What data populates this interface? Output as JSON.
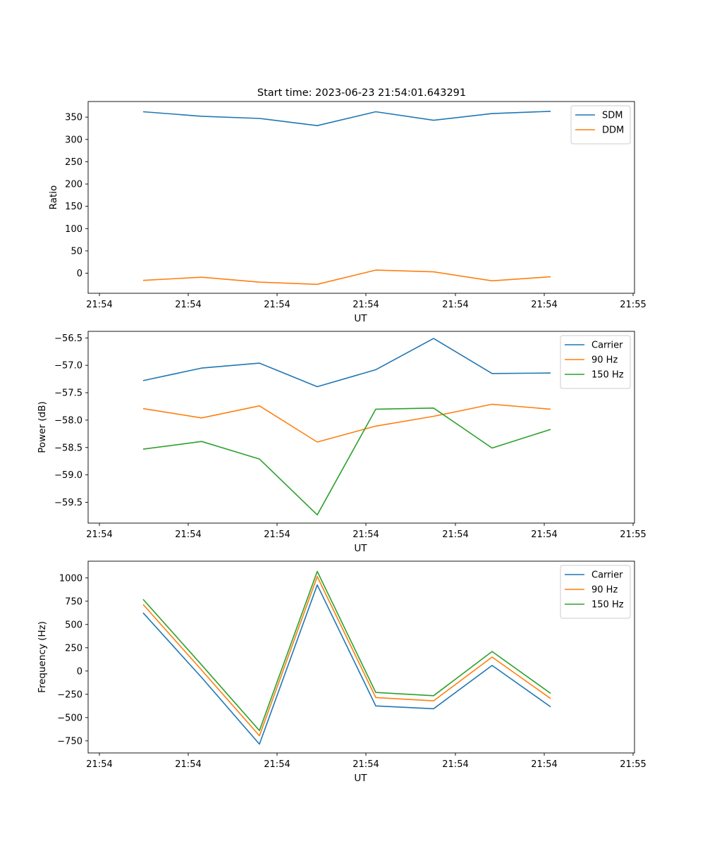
{
  "figure_title": "Start time: 2023-06-23 21:54:01.643291",
  "colors": {
    "blue": "#1f77b4",
    "orange": "#ff7f0e",
    "green": "#2ca02c"
  },
  "chart_data": [
    {
      "type": "line",
      "xlabel": "UT",
      "ylabel": "Ratio",
      "x_ticks": [
        "21:54",
        "21:54",
        "21:54",
        "21:54",
        "21:54",
        "21:54",
        "21:54",
        "21:55"
      ],
      "ylim": [
        -45,
        385
      ],
      "y_ticks": [
        350,
        300,
        250,
        200,
        150,
        100,
        50,
        0
      ],
      "legend_position": "top-right",
      "series": [
        {
          "name": "SDM",
          "color": "#1f77b4",
          "values": [
            362,
            352,
            347,
            331,
            362,
            343,
            358,
            363
          ]
        },
        {
          "name": "DDM",
          "color": "#ff7f0e",
          "values": [
            -16,
            -9,
            -20,
            -25,
            7,
            3,
            -17,
            -8
          ]
        }
      ]
    },
    {
      "type": "line",
      "xlabel": "UT",
      "ylabel": "Power (dB)",
      "x_ticks": [
        "21:54",
        "21:54",
        "21:54",
        "21:54",
        "21:54",
        "21:54",
        "21:54",
        "21:55"
      ],
      "ylim": [
        -59.88,
        -56.38
      ],
      "y_ticks": [
        -56.5,
        -57.0,
        -57.5,
        -58.0,
        -58.5,
        -59.0,
        -59.5
      ],
      "y_tick_labels": [
        "−56.5",
        "−57.0",
        "−57.5",
        "−58.0",
        "−58.5",
        "−59.0",
        "−59.5"
      ],
      "legend_position": "top-right",
      "series": [
        {
          "name": "Carrier",
          "color": "#1f77b4",
          "values": [
            -57.28,
            -57.05,
            -56.96,
            -57.39,
            -57.08,
            -56.51,
            -57.15,
            -57.14
          ]
        },
        {
          "name": "90 Hz",
          "color": "#ff7f0e",
          "values": [
            -57.79,
            -57.96,
            -57.74,
            -58.4,
            -58.11,
            -57.93,
            -57.71,
            -57.8
          ]
        },
        {
          "name": "150 Hz",
          "color": "#2ca02c",
          "values": [
            -58.53,
            -58.39,
            -58.71,
            -59.73,
            -57.8,
            -57.78,
            -58.51,
            -58.17
          ]
        }
      ]
    },
    {
      "type": "line",
      "xlabel": "UT",
      "ylabel": "Frequency (Hz)",
      "x_ticks": [
        "21:54",
        "21:54",
        "21:54",
        "21:54",
        "21:54",
        "21:54",
        "21:54",
        "21:55"
      ],
      "ylim": [
        -880,
        1180
      ],
      "y_ticks": [
        1000,
        750,
        500,
        250,
        0,
        -250,
        -500,
        -750
      ],
      "y_tick_labels": [
        "1000",
        "750",
        "500",
        "250",
        "0",
        "−250",
        "−500",
        "−750"
      ],
      "legend_position": "top-right",
      "series": [
        {
          "name": "Carrier",
          "color": "#1f77b4",
          "values": [
            625,
            -70,
            -785,
            925,
            -375,
            -405,
            60,
            -385
          ]
        },
        {
          "name": "90 Hz",
          "color": "#ff7f0e",
          "values": [
            715,
            10,
            -695,
            1015,
            -285,
            -320,
            150,
            -295
          ]
        },
        {
          "name": "150 Hz",
          "color": "#2ca02c",
          "values": [
            770,
            65,
            -640,
            1070,
            -230,
            -265,
            210,
            -240
          ]
        }
      ]
    }
  ]
}
